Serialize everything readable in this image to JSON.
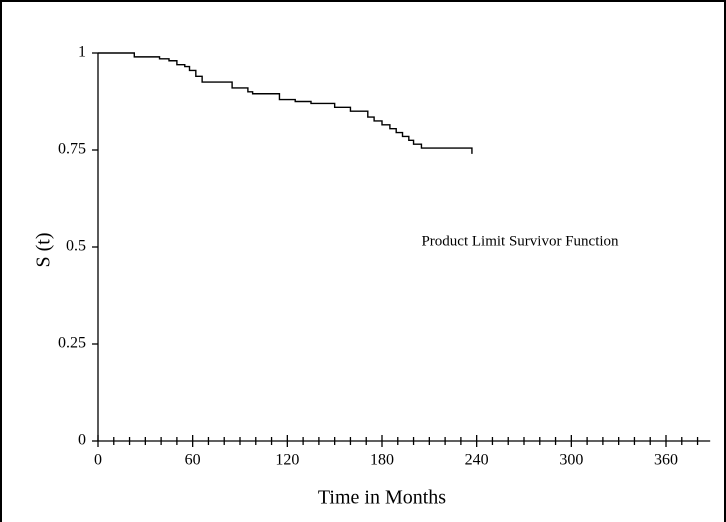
{
  "chart_data": {
    "type": "line",
    "step": "post",
    "x_label": "Time in Months",
    "y_label": "S (t)",
    "annotation": "Product Limit Survivor Function",
    "x": [
      0,
      23,
      39,
      45,
      50,
      55,
      58,
      62,
      66,
      85,
      95,
      98,
      115,
      125,
      135,
      150,
      160,
      171,
      175,
      180,
      185,
      189,
      193,
      197,
      200,
      205,
      237
    ],
    "series": [
      {
        "name": "S (t)",
        "color": "#000000",
        "values": [
          1,
          0.99,
          0.985,
          0.98,
          0.97,
          0.965,
          0.955,
          0.94,
          0.925,
          0.91,
          0.9,
          0.895,
          0.88,
          0.875,
          0.87,
          0.86,
          0.85,
          0.835,
          0.825,
          0.815,
          0.805,
          0.795,
          0.785,
          0.775,
          0.765,
          0.755,
          0.74
        ]
      }
    ],
    "xlim": [
      0,
      388
    ],
    "ylim": [
      0,
      1
    ],
    "xticks": [
      0,
      60,
      120,
      180,
      240,
      300,
      360
    ],
    "xminorticks": [
      10,
      20,
      30,
      40,
      50,
      70,
      80,
      90,
      100,
      110,
      130,
      140,
      150,
      160,
      170,
      190,
      200,
      210,
      220,
      230,
      250,
      260,
      270,
      280,
      290,
      310,
      320,
      330,
      340,
      350,
      370,
      380
    ],
    "yticks": [
      0,
      0.25,
      0.5,
      0.75,
      1
    ],
    "grid": false
  }
}
